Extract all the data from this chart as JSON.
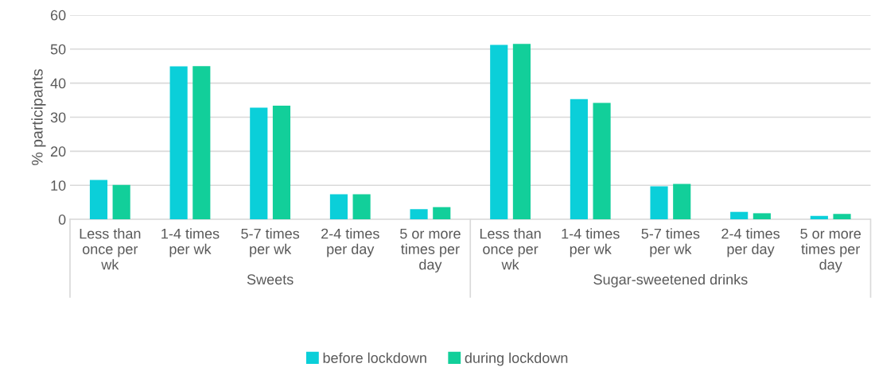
{
  "chart_data": {
    "type": "bar",
    "ylabel": "% participants",
    "categories": [
      "Less than\nonce per\nwk",
      "1-4 times\nper wk",
      "5-7 times\nper wk",
      "2-4 times\nper day",
      "5 or more\ntimes per\nday",
      "Less than\nonce per\nwk",
      "1-4 times\nper wk",
      "5-7 times\nper wk",
      "2-4 times\nper day",
      "5 or more\ntimes per\nday"
    ],
    "series": [
      {
        "name": "before lockdown",
        "color": "#0bcfd9",
        "values": [
          11.6,
          44.9,
          32.8,
          7.4,
          3.0,
          51.2,
          35.3,
          9.7,
          2.2,
          1.0
        ]
      },
      {
        "name": "during lockdown",
        "color": "#12cf9a",
        "values": [
          10.1,
          45.0,
          33.4,
          7.4,
          3.6,
          51.5,
          34.2,
          10.4,
          1.8,
          1.6
        ]
      }
    ],
    "annotations": [
      "Sweets",
      "Sugar-sweetened drinks"
    ],
    "ylim": [
      0,
      60
    ],
    "yticks": [
      0,
      10,
      20,
      30,
      40,
      50,
      60
    ],
    "grid": "y",
    "legend": "bottom"
  }
}
